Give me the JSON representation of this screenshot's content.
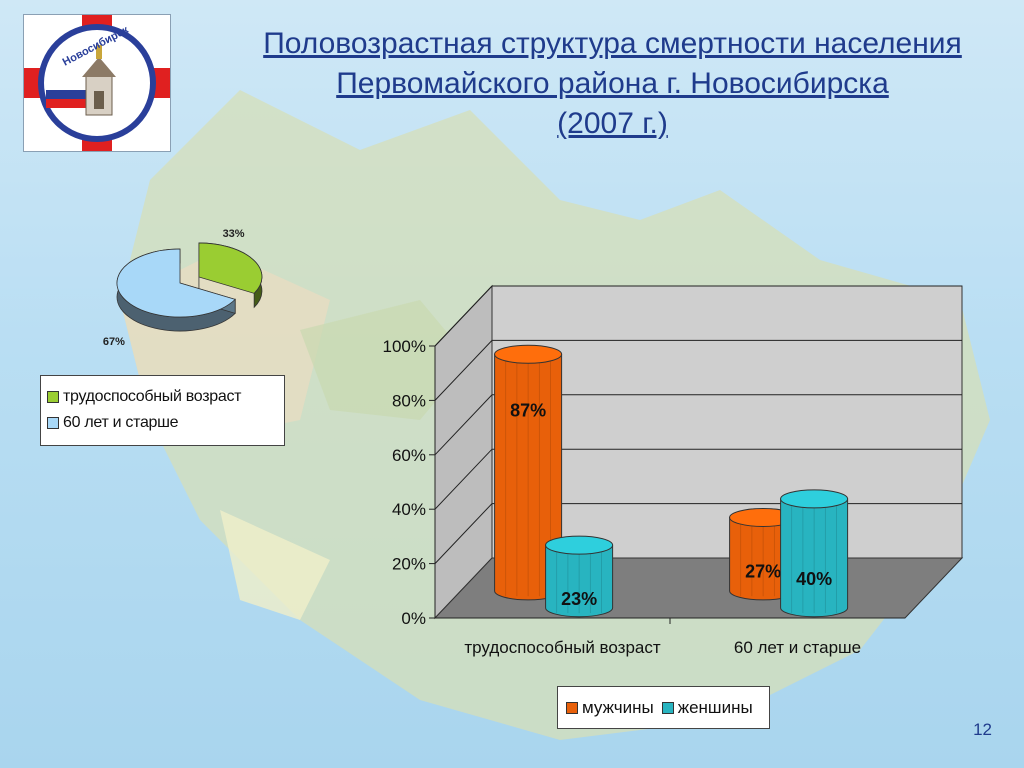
{
  "slide": {
    "title_lines": [
      "Половозрастная структура смертности населения",
      "Первомайского района г. Новосибирска",
      "(2007 г.)"
    ],
    "page_number": "12",
    "logo_text": "Новосибирск"
  },
  "colors": {
    "title": "#1f3b8c",
    "men": "#e8600a",
    "women": "#28b4c0",
    "pie_working": "#9acd32",
    "pie_elderly": "#a8d8f8"
  },
  "chart_data": [
    {
      "type": "pie",
      "title": "",
      "categories": [
        "трудоспособный возраст",
        "60 лет и старше"
      ],
      "values": [
        33,
        67
      ],
      "data_labels": [
        "33%",
        "67%"
      ],
      "legend": [
        "трудоспособный возраст",
        "60 лет и старше"
      ],
      "legend_position": "below"
    },
    {
      "type": "bar",
      "title": "",
      "categories": [
        "трудоспособный возраст",
        "60 лет и старше"
      ],
      "series": [
        {
          "name": "мужчины",
          "values": [
            87,
            27
          ],
          "labels": [
            "87%",
            "27%"
          ]
        },
        {
          "name": "женшины",
          "values": [
            23,
            40
          ],
          "labels": [
            "23%",
            "40%"
          ]
        }
      ],
      "y_ticks": [
        "0%",
        "20%",
        "40%",
        "60%",
        "80%",
        "100%"
      ],
      "ylim": [
        0,
        100
      ],
      "grid": true,
      "legend_position": "bottom"
    }
  ]
}
